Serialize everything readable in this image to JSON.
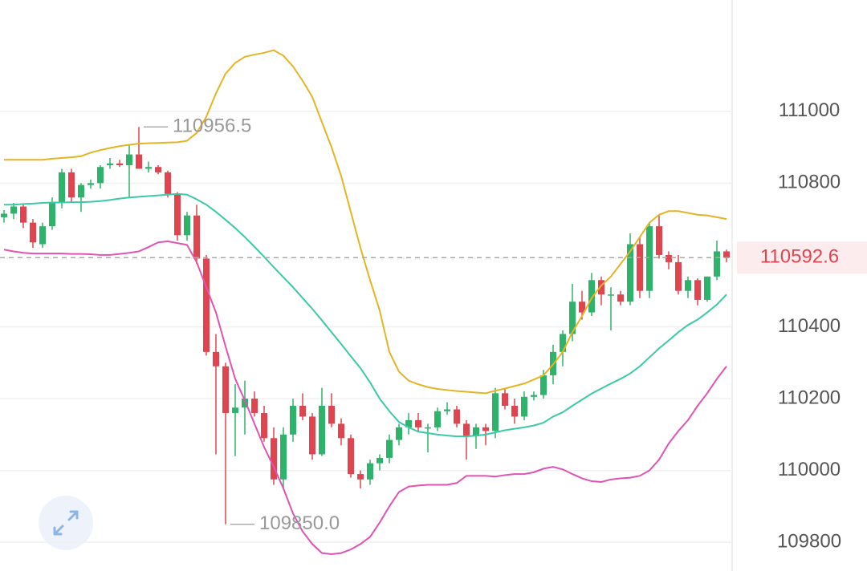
{
  "chart_data": {
    "type": "candlestick",
    "ylim": [
      109720,
      111310
    ],
    "yticks": [
      109800,
      110000,
      110200,
      110400,
      110800,
      111000
    ],
    "grid": true,
    "up_color": "#2fb36a",
    "down_color": "#e0454f",
    "open": [
      110705,
      110715,
      110735,
      110690,
      110630,
      110680,
      110745,
      110830,
      110760,
      110795,
      110800,
      110850,
      110855,
      110850,
      110880,
      110840,
      110845,
      110830,
      110770,
      110655,
      110710,
      110590,
      110330,
      110290,
      110160,
      110175,
      110200,
      110160,
      110090,
      109975,
      110100,
      110180,
      110150,
      110045,
      110180,
      110130,
      110090,
      109990,
      109975,
      110020,
      110035,
      110085,
      110120,
      110140,
      110120,
      110120,
      110165,
      110170,
      110130,
      110095,
      110120,
      110110,
      110215,
      110180,
      110150,
      110205,
      110210,
      110265,
      110330,
      110380,
      110470,
      110440,
      110530,
      110490,
      110490,
      110470,
      110630,
      110500,
      110680,
      110600,
      110580,
      110500,
      110530,
      110475,
      110540,
      110610
    ],
    "high": [
      110725,
      110745,
      110740,
      110700,
      110690,
      110760,
      110840,
      110840,
      110800,
      110810,
      110850,
      110870,
      110865,
      110905,
      110956.5,
      110860,
      110850,
      110835,
      110775,
      110720,
      110740,
      110600,
      110380,
      110300,
      110240,
      110250,
      110220,
      110180,
      110120,
      110120,
      110200,
      110215,
      110160,
      110230,
      110215,
      110145,
      110100,
      110000,
      110030,
      110045,
      110100,
      110130,
      110160,
      110160,
      110130,
      110175,
      110190,
      110180,
      110140,
      110130,
      110130,
      110230,
      110230,
      110200,
      110220,
      110220,
      110280,
      110350,
      110390,
      110520,
      110500,
      110550,
      110540,
      110510,
      110500,
      110660,
      110650,
      110690,
      110710,
      110610,
      110600,
      110540,
      110535,
      110540,
      110640,
      110615
    ],
    "low": [
      110690,
      110700,
      110675,
      110620,
      110620,
      110670,
      110730,
      110745,
      110720,
      110785,
      110785,
      110840,
      110845,
      110760,
      110850,
      110830,
      110825,
      110760,
      110640,
      110640,
      110575,
      110320,
      110045,
      109850,
      110040,
      110100,
      110150,
      110080,
      109960,
      109950,
      110080,
      110140,
      110030,
      110040,
      110120,
      110070,
      109980,
      109950,
      109960,
      110000,
      110020,
      110070,
      110100,
      110110,
      110050,
      110110,
      110155,
      110120,
      110030,
      110060,
      110070,
      110090,
      110170,
      110130,
      110140,
      110195,
      110200,
      110240,
      110290,
      110360,
      110420,
      110430,
      110460,
      110390,
      110460,
      110460,
      110480,
      110480,
      110590,
      110560,
      110490,
      110480,
      110460,
      110470,
      110530,
      110580
    ],
    "close": [
      110715,
      110735,
      110690,
      110635,
      110680,
      110745,
      110830,
      110760,
      110795,
      110800,
      110845,
      110855,
      110850,
      110880,
      110840,
      110845,
      110830,
      110770,
      110655,
      110710,
      110590,
      110330,
      110290,
      110160,
      110175,
      110200,
      110160,
      110090,
      109975,
      110100,
      110180,
      110150,
      110045,
      110180,
      110130,
      110090,
      109990,
      109975,
      110020,
      110035,
      110085,
      110120,
      110140,
      110120,
      110120,
      110165,
      110170,
      110130,
      110095,
      110120,
      110110,
      110215,
      110180,
      110150,
      110205,
      110210,
      110265,
      110330,
      110380,
      110470,
      110440,
      110530,
      110490,
      110490,
      110470,
      110630,
      110500,
      110680,
      110600,
      110580,
      110500,
      110530,
      110475,
      110540,
      110610,
      110592.6
    ],
    "series": [
      {
        "color": "#e6b422",
        "values": [
          110865,
          110865,
          110865,
          110865,
          110865,
          110868,
          110870,
          110872,
          110875,
          110885,
          110892,
          110898,
          110903,
          110907,
          110910,
          110911,
          110912,
          110913,
          110914,
          110918,
          110940,
          110985,
          111050,
          111105,
          111135,
          111152,
          111158,
          111163,
          111170,
          111155,
          111125,
          111085,
          111040,
          110970,
          110900,
          110820,
          110720,
          110620,
          110530,
          110445,
          110330,
          110275,
          110250,
          110240,
          110232,
          110227,
          110224,
          110221,
          110219,
          110217,
          110215,
          110222,
          110228,
          110235,
          110242,
          110253,
          110265,
          110295,
          110330,
          110385,
          110430,
          110480,
          110515,
          110540,
          110575,
          110610,
          110650,
          110690,
          110712,
          110722,
          110722,
          110717,
          110712,
          110710,
          110705,
          110700
        ]
      },
      {
        "color": "#3cc9a8",
        "values": [
          110740,
          110740,
          110742,
          110743,
          110745,
          110746,
          110746,
          110747,
          110747,
          110748,
          110750,
          110753,
          110757,
          110760,
          110762,
          110764,
          110766,
          110768,
          110770,
          110768,
          110755,
          110740,
          110720,
          110698,
          110675,
          110650,
          110623,
          110595,
          110566,
          110538,
          110510,
          110480,
          110450,
          110418,
          110385,
          110352,
          110318,
          110285,
          110245,
          110200,
          110165,
          110135,
          110120,
          110108,
          110104,
          110100,
          110097,
          110095,
          110095,
          110097,
          110100,
          110106,
          110112,
          110116,
          110120,
          110125,
          110133,
          110150,
          110162,
          110180,
          110197,
          110214,
          110228,
          110242,
          110255,
          110270,
          110290,
          110315,
          110340,
          110362,
          110385,
          110405,
          110420,
          110440,
          110462,
          110490
        ]
      },
      {
        "color": "#e052b4",
        "values": [
          110615,
          110610,
          110606,
          110604,
          110604,
          110604,
          110604,
          110603,
          110603,
          110602,
          110600,
          110600,
          110603,
          110606,
          110610,
          110622,
          110635,
          110638,
          110633,
          110628,
          110580,
          110510,
          110440,
          110345,
          110255,
          110195,
          110130,
          110065,
          110010,
          109950,
          109880,
          109830,
          109795,
          109770,
          109767,
          109770,
          109780,
          109795,
          109815,
          109855,
          109900,
          109940,
          109955,
          109958,
          109960,
          109960,
          109960,
          109965,
          109985,
          109985,
          109985,
          109983,
          109987,
          109990,
          109990,
          109995,
          110005,
          110010,
          110003,
          109990,
          109978,
          109970,
          109968,
          109975,
          109978,
          109980,
          109985,
          110000,
          110030,
          110075,
          110110,
          110140,
          110180,
          110215,
          110255,
          110290
        ]
      }
    ],
    "annotations": [
      {
        "index": 14,
        "value": 110956.5
      },
      {
        "index": 23,
        "value": {
          "value": 109850,
          "label": "109850.0"
        }
      }
    ],
    "current_price": 110592.6,
    "current_color": "#e0454f"
  }
}
